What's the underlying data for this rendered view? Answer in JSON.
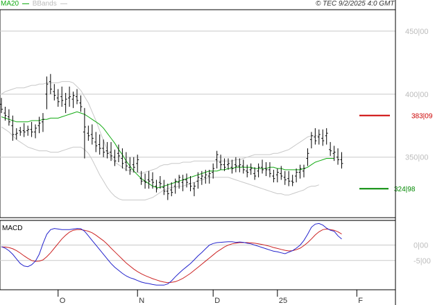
{
  "header": {
    "legend_ma": "MA20",
    "legend_bb": "BBands",
    "copyright": "© TEC 9/2/2025 4:0 GMT"
  },
  "colors": {
    "price": "#000000",
    "ma": "#11aa11",
    "bbands": "#c8c8c8",
    "resistance": "#cc0000",
    "support": "#008800",
    "macd": "#2222cc",
    "signal": "#cc2222",
    "grid": "#c8c8c8"
  },
  "chart_data": [
    {
      "type": "ohlc",
      "title": "",
      "y_ticks": [
        350,
        400,
        450
      ],
      "y_tick_labels": [
        "350|00",
        "400|00",
        "450|00"
      ],
      "ylim": [
        302,
        467
      ],
      "x_tick_labels": [
        "O",
        "N",
        "D",
        "25",
        "F"
      ],
      "x_tick_index": [
        15,
        36,
        56,
        73,
        94
      ],
      "grid": true,
      "legend": "top-left",
      "series": [
        {
          "name": "price",
          "high": [
            397,
            390,
            388,
            383,
            373,
            374,
            377,
            375,
            378,
            376,
            382,
            385,
            414,
            416,
            408,
            404,
            406,
            401,
            406,
            402,
            404,
            399,
            389,
            375,
            376,
            370,
            368,
            364,
            362,
            362,
            356,
            360,
            357,
            354,
            350,
            350,
            352,
            339,
            337,
            339,
            338,
            332,
            335,
            332,
            329,
            330,
            333,
            336,
            336,
            337,
            335,
            330,
            338,
            339,
            340,
            340,
            345,
            355,
            352,
            349,
            349,
            348,
            350,
            349,
            348,
            344,
            345,
            342,
            345,
            348,
            346,
            346,
            340,
            341,
            343,
            339,
            339,
            336,
            341,
            344,
            344,
            357,
            370,
            373,
            372,
            372,
            373,
            362,
            359,
            357,
            354
          ],
          "low": [
            385,
            379,
            375,
            363,
            364,
            367,
            366,
            367,
            366,
            365,
            369,
            370,
            388,
            400,
            395,
            390,
            390,
            385,
            390,
            389,
            392,
            386,
            349,
            363,
            360,
            354,
            352,
            350,
            349,
            347,
            343,
            346,
            341,
            339,
            336,
            338,
            338,
            328,
            325,
            325,
            325,
            322,
            325,
            320,
            316,
            319,
            321,
            325,
            323,
            326,
            323,
            319,
            325,
            328,
            329,
            329,
            333,
            341,
            340,
            339,
            340,
            337,
            338,
            338,
            337,
            334,
            336,
            332,
            334,
            337,
            335,
            334,
            330,
            330,
            332,
            328,
            327,
            327,
            330,
            333,
            334,
            343,
            357,
            360,
            360,
            359,
            360,
            351,
            347,
            344,
            341
          ],
          "open": [
            392,
            385,
            382,
            375,
            368,
            371,
            371,
            371,
            372,
            370,
            375,
            378,
            400,
            410,
            402,
            397,
            398,
            392,
            397,
            396,
            398,
            393,
            370,
            369,
            368,
            362,
            360,
            357,
            355,
            354,
            350,
            353,
            349,
            346,
            342,
            344,
            345,
            333,
            331,
            332,
            332,
            327,
            330,
            326,
            323,
            324,
            327,
            330,
            330,
            332,
            329,
            325,
            331,
            333,
            334,
            335,
            338,
            348,
            346,
            344,
            344,
            342,
            344,
            343,
            343,
            339,
            340,
            337,
            339,
            342,
            341,
            340,
            335,
            336,
            337,
            334,
            333,
            331,
            335,
            338,
            339,
            349,
            364,
            366,
            366,
            365,
            367,
            356,
            353,
            350,
            348
          ],
          "close": [
            388,
            383,
            378,
            368,
            369,
            370,
            370,
            372,
            370,
            373,
            377,
            380,
            408,
            404,
            399,
            394,
            395,
            396,
            398,
            399,
            395,
            390,
            374,
            367,
            365,
            359,
            357,
            354,
            353,
            351,
            347,
            351,
            345,
            343,
            340,
            342,
            348,
            331,
            330,
            331,
            330,
            325,
            329,
            323,
            321,
            322,
            331,
            334,
            332,
            330,
            327,
            327,
            334,
            335,
            336,
            337,
            341,
            352,
            344,
            342,
            345,
            341,
            343,
            344,
            340,
            338,
            341,
            335,
            342,
            340,
            340,
            337,
            333,
            338,
            335,
            332,
            331,
            330,
            338,
            341,
            341,
            353,
            367,
            363,
            368,
            363,
            369,
            355,
            354,
            348,
            345
          ]
        },
        {
          "name": "MA20",
          "values": [
            382,
            381,
            380,
            379,
            378,
            378,
            378,
            378,
            379,
            379,
            379,
            380,
            380,
            381,
            381,
            381,
            382,
            383,
            384,
            385,
            386,
            385,
            384,
            382,
            380,
            378,
            376,
            373,
            369,
            365,
            361,
            356,
            352,
            347,
            343,
            339,
            336,
            333,
            331,
            329,
            327,
            326,
            326,
            327,
            328,
            329,
            330,
            331,
            332,
            333,
            334,
            335,
            336,
            337,
            338,
            339,
            339,
            339,
            340,
            340,
            341,
            341,
            342,
            342,
            342,
            342,
            342,
            341,
            341,
            341,
            341,
            342,
            342,
            341,
            341,
            340,
            340,
            340,
            340,
            340,
            341,
            342,
            344,
            346,
            347,
            348,
            349,
            349,
            349
          ]
        },
        {
          "name": "BB upper",
          "values": [
            400,
            402,
            403,
            404,
            405,
            405,
            405,
            406,
            407,
            407,
            408,
            408,
            409,
            409,
            409,
            409,
            410,
            410,
            410,
            409,
            406,
            403,
            398,
            393,
            386,
            379,
            371,
            363,
            356,
            350,
            346,
            344,
            342,
            340,
            339,
            338,
            338,
            337,
            338,
            339,
            340,
            341,
            343,
            344,
            344,
            345,
            345,
            345,
            346,
            346,
            346,
            347,
            347,
            347,
            347,
            347,
            347,
            347,
            347,
            347,
            347,
            347,
            348,
            348,
            349,
            350,
            351,
            352,
            352,
            352,
            352,
            352,
            353,
            353,
            354,
            355,
            356,
            358,
            360,
            362,
            364,
            366,
            367,
            367,
            367
          ]
        },
        {
          "name": "BB lower",
          "values": [
            374,
            372,
            370,
            367,
            364,
            362,
            360,
            358,
            357,
            356,
            355,
            355,
            355,
            354,
            354,
            354,
            355,
            356,
            357,
            358,
            358,
            358,
            356,
            353,
            348,
            342,
            336,
            331,
            326,
            322,
            319,
            317,
            316,
            316,
            316,
            316,
            316,
            316,
            316,
            317,
            318,
            320,
            322,
            324,
            325,
            326,
            326,
            327,
            327,
            328,
            329,
            330,
            331,
            332,
            333,
            334,
            334,
            334,
            334,
            334,
            334,
            333,
            332,
            331,
            330,
            329,
            328,
            327,
            326,
            325,
            324,
            323,
            322,
            321,
            321,
            320,
            320,
            321,
            322,
            323,
            324,
            326,
            327,
            327,
            328
          ]
        }
      ],
      "annotations": [
        {
          "label": "383|09",
          "value": 383.09,
          "color": "resistance"
        },
        {
          "label": "324|98",
          "value": 324.98,
          "color": "support"
        }
      ]
    },
    {
      "type": "line",
      "title": "MACD",
      "y_ticks": [
        0,
        -5
      ],
      "y_tick_labels": [
        "0|00",
        "-5|00"
      ],
      "ylim": [
        -14.5,
        8
      ],
      "grid": true,
      "series": [
        {
          "name": "MACD",
          "values": [
            -0.5,
            -1,
            -1.8,
            -3,
            -4.5,
            -6,
            -6.8,
            -7,
            -6.4,
            -5.2,
            -3,
            0.5,
            3.5,
            5,
            5.4,
            5.2,
            5,
            5,
            5,
            5.2,
            5.4,
            5.3,
            4.5,
            3,
            1.5,
            0,
            -1.5,
            -3,
            -4.5,
            -6,
            -7.2,
            -8.2,
            -9.2,
            -10,
            -10.6,
            -11,
            -11.5,
            -12,
            -12.3,
            -12.5,
            -12.8,
            -13,
            -13,
            -13,
            -12.6,
            -11.6,
            -10.3,
            -9.1,
            -8,
            -7,
            -6,
            -4.8,
            -3.5,
            -2.4,
            -1.2,
            0,
            0.5,
            0.8,
            0.9,
            1,
            1.1,
            1.1,
            0.9,
            1,
            0.9,
            0.6,
            0.4,
            0,
            -0.4,
            -0.8,
            -1.2,
            -1.6,
            -2,
            -2.2,
            -2.5,
            -2.8,
            -2.3,
            -1.8,
            -1,
            0,
            1.5,
            3.5,
            5.8,
            6.8,
            7,
            6.5,
            5.5,
            4.8,
            4.5,
            3,
            2
          ]
        },
        {
          "name": "Signal",
          "values": [
            -0.6,
            -0.6,
            -0.8,
            -1.2,
            -1.8,
            -2.6,
            -3.5,
            -4.3,
            -5,
            -5.3,
            -5.2,
            -4.8,
            -3.8,
            -2.5,
            -1,
            0.5,
            2,
            3.2,
            4.2,
            4.8,
            5,
            5,
            4.8,
            4.5,
            4,
            3.2,
            2.3,
            1.4,
            0.3,
            -1,
            -2.2,
            -3.4,
            -4.6,
            -5.8,
            -6.8,
            -7.8,
            -8.6,
            -9.3,
            -9.9,
            -10.4,
            -10.9,
            -11.3,
            -11.7,
            -12,
            -12.2,
            -12.1,
            -11.9,
            -11.4,
            -10.8,
            -10,
            -9.2,
            -8.2,
            -7.2,
            -6.2,
            -5.2,
            -4.2,
            -3.2,
            -2.2,
            -1.4,
            -0.6,
            0,
            0.4,
            0.6,
            0.8,
            0.8,
            0.8,
            0.7,
            0.6,
            0.4,
            0.2,
            -0.1,
            -0.4,
            -0.8,
            -1.1,
            -1.4,
            -1.7,
            -1.9,
            -1.8,
            -1.5,
            -1,
            -0.2,
            0.8,
            2,
            3.3,
            4.3,
            5,
            5.2,
            5,
            4.8,
            4.3,
            3.6
          ]
        }
      ]
    }
  ]
}
